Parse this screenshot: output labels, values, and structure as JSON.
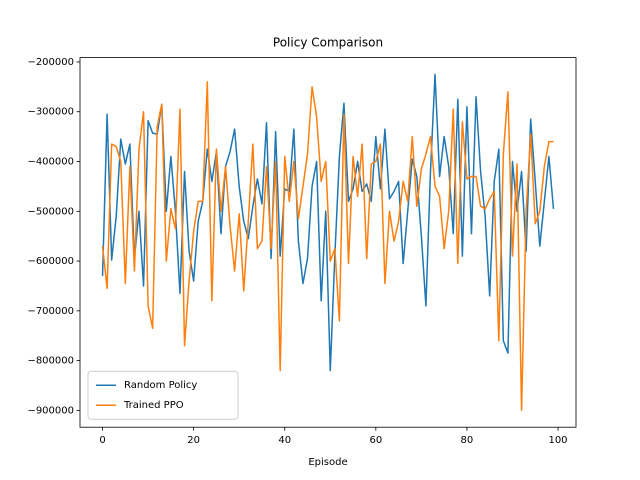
{
  "chart_data": {
    "type": "line",
    "title": "Policy Comparison",
    "x_label": "Episode",
    "x": [
      0,
      1,
      2,
      3,
      4,
      5,
      6,
      7,
      8,
      9,
      10,
      11,
      12,
      13,
      14,
      15,
      16,
      17,
      18,
      19,
      20,
      21,
      22,
      23,
      24,
      25,
      26,
      27,
      28,
      29,
      30,
      31,
      32,
      33,
      34,
      35,
      36,
      37,
      38,
      39,
      40,
      41,
      42,
      43,
      44,
      45,
      46,
      47,
      48,
      49,
      50,
      51,
      52,
      53,
      54,
      55,
      56,
      57,
      58,
      59,
      60,
      61,
      62,
      63,
      64,
      65,
      66,
      67,
      68,
      69,
      70,
      71,
      72,
      73,
      74,
      75,
      76,
      77,
      78,
      79,
      80,
      81,
      82,
      83,
      84,
      85,
      86,
      87,
      88,
      89,
      90,
      91,
      92,
      93,
      94,
      95,
      96,
      97,
      98,
      99
    ],
    "series": [
      {
        "name": "Random Policy",
        "color": "#1f77b4",
        "values": [
          -630000,
          -305000,
          -598000,
          -510000,
          -355000,
          -405000,
          -365000,
          -595000,
          -500000,
          -650000,
          -318000,
          -343000,
          -345000,
          -285000,
          -500000,
          -390000,
          -500000,
          -665000,
          -420000,
          -580000,
          -640000,
          -520000,
          -480000,
          -375000,
          -440000,
          -380000,
          -545000,
          -410000,
          -380000,
          -335000,
          -450000,
          -520000,
          -555000,
          -490000,
          -435000,
          -485000,
          -322000,
          -595000,
          -340000,
          -590000,
          -455000,
          -460000,
          -335000,
          -560000,
          -645000,
          -595000,
          -450000,
          -400000,
          -680000,
          -500000,
          -820000,
          -590000,
          -390000,
          -283000,
          -480000,
          -455000,
          -400000,
          -460000,
          -445000,
          -480000,
          -350000,
          -455000,
          -335000,
          -475000,
          -460000,
          -440000,
          -605000,
          -500000,
          -395000,
          -430000,
          -550000,
          -690000,
          -420000,
          -225000,
          -430000,
          -350000,
          -410000,
          -545000,
          -275000,
          -590000,
          -290000,
          -545000,
          -270000,
          -420000,
          -510000,
          -670000,
          -440000,
          -375000,
          -760000,
          -785000,
          -400000,
          -500000,
          -420000,
          -580000,
          -315000,
          -440000,
          -570000,
          -480000,
          -390000,
          -495000
        ]
      },
      {
        "name": "Trained PPO",
        "color": "#ff7f0e",
        "values": [
          -570000,
          -655000,
          -365000,
          -370000,
          -400000,
          -645000,
          -410000,
          -620000,
          -375000,
          -300000,
          -690000,
          -735000,
          -330000,
          -285000,
          -600000,
          -495000,
          -535000,
          -295000,
          -770000,
          -640000,
          -540000,
          -480000,
          -480000,
          -240000,
          -680000,
          -375000,
          -500000,
          -410000,
          -530000,
          -620000,
          -505000,
          -660000,
          -520000,
          -365000,
          -575000,
          -560000,
          -410000,
          -575000,
          -400000,
          -820000,
          -390000,
          -480000,
          -400000,
          -515000,
          -450000,
          -385000,
          -250000,
          -310000,
          -440000,
          -400000,
          -600000,
          -575000,
          -720000,
          -305000,
          -605000,
          -390000,
          -470000,
          -365000,
          -595000,
          -405000,
          -400000,
          -365000,
          -645000,
          -500000,
          -560000,
          -520000,
          -440000,
          -480000,
          -350000,
          -490000,
          -415000,
          -385000,
          -350000,
          -450000,
          -470000,
          -575000,
          -500000,
          -295000,
          -605000,
          -320000,
          -435000,
          -430000,
          -430000,
          -490000,
          -495000,
          -475000,
          -460000,
          -760000,
          -385000,
          -260000,
          -590000,
          -405000,
          -900000,
          -500000,
          -345000,
          -525000,
          -500000,
          -410000,
          -360000,
          -360000
        ]
      }
    ],
    "xlim": [
      -4.95,
      103.95
    ],
    "xticks": [
      0,
      20,
      40,
      60,
      80,
      100
    ],
    "ylim": [
      -933750,
      -191250
    ],
    "yticks": [
      {
        "value": -900000,
        "label": "−900000"
      },
      {
        "value": -800000,
        "label": "−800000"
      },
      {
        "value": -700000,
        "label": "−700000"
      },
      {
        "value": -600000,
        "label": "−600000"
      },
      {
        "value": -500000,
        "label": "−500000"
      },
      {
        "value": -400000,
        "label": "−400000"
      },
      {
        "value": -300000,
        "label": "−300000"
      },
      {
        "value": -200000,
        "label": "−200000"
      }
    ],
    "grid": false,
    "legend": "lower left"
  }
}
